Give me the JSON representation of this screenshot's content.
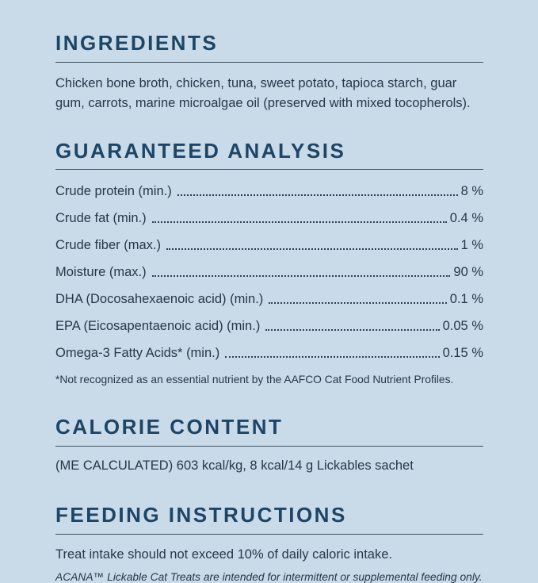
{
  "page": {
    "background_color": "#c9dae9",
    "heading_color": "#1d4565",
    "text_color": "#26394a"
  },
  "ingredients": {
    "title": "INGREDIENTS",
    "body": "Chicken bone broth, chicken, tuna, sweet potato, tapioca starch, guar gum, carrots, marine microalgae oil (preserved with mixed tocopherols)."
  },
  "analysis": {
    "title": "GUARANTEED ANALYSIS",
    "rows": [
      {
        "label": "Crude protein (min.)",
        "value": "8 %"
      },
      {
        "label": "Crude fat (min.)",
        "value": "0.4 %"
      },
      {
        "label": "Crude fiber (max.)",
        "value": "1 %"
      },
      {
        "label": "Moisture (max.)",
        "value": "90 %"
      },
      {
        "label": "DHA (Docosahexaenoic acid) (min.)",
        "value": "0.1 %"
      },
      {
        "label": "EPA (Eicosapentaenoic acid) (min.)",
        "value": "0.05 %"
      },
      {
        "label": "Omega-3 Fatty Acids* (min.)",
        "value": "0.15 %"
      }
    ],
    "footnote": "*Not recognized as an essential nutrient by the AAFCO Cat Food Nutrient Profiles."
  },
  "calories": {
    "title": "CALORIE CONTENT",
    "body": "(ME CALCULATED) 603 kcal/kg, 8 kcal/14 g Lickables sachet"
  },
  "feeding": {
    "title": "FEEDING INSTRUCTIONS",
    "body": "Treat intake should not exceed 10% of daily caloric intake.",
    "note": "ACANA™ Lickable Cat Treats are intended for intermittent or supplemental feeding only."
  }
}
